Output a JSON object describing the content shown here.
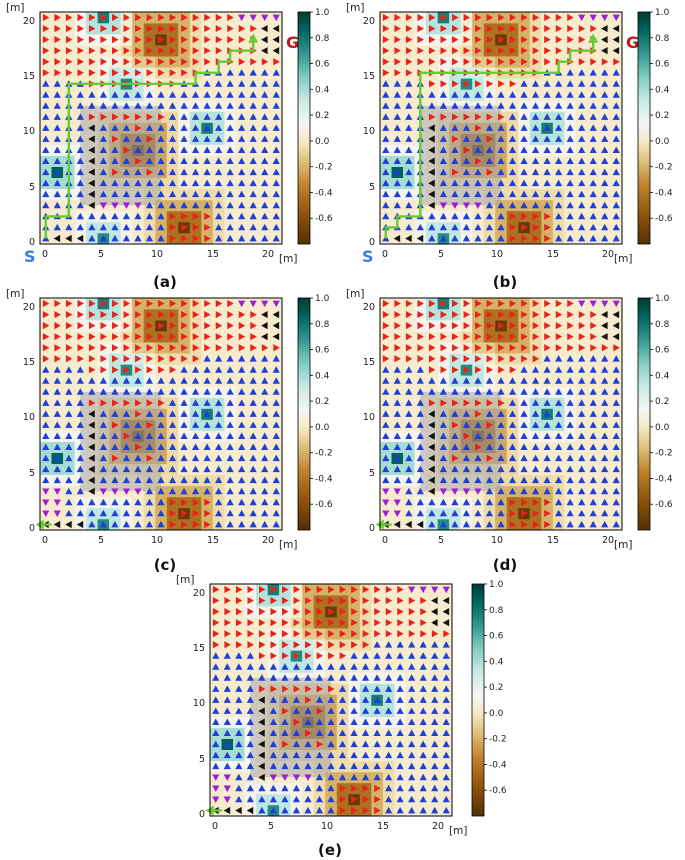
{
  "chart_data": [
    {
      "type": "heatmap",
      "panel_label": "(a)",
      "unit": "[m]",
      "x_ticks": [
        "0",
        "5",
        "10",
        "15",
        "20"
      ],
      "y_ticks": [
        "0",
        "5",
        "10",
        "15",
        "20"
      ],
      "colorbar_ticks": [
        "1.0",
        "0.8",
        "0.6",
        "0.4",
        "0.2",
        "0.0",
        "-0.2",
        "-0.4",
        "-0.6"
      ],
      "xlim": [
        -0.5,
        20.5
      ],
      "ylim": [
        -0.5,
        20.5
      ],
      "clim": [
        -0.8,
        1.0
      ],
      "start_label": "S",
      "goal_label": "G",
      "path": [
        [
          0,
          0
        ],
        [
          0,
          2
        ],
        [
          2,
          2
        ],
        [
          2,
          14
        ],
        [
          13,
          14
        ],
        [
          13,
          15
        ],
        [
          15,
          15
        ],
        [
          15,
          16
        ],
        [
          16,
          16
        ],
        [
          16,
          17
        ],
        [
          18,
          17
        ],
        [
          18,
          18
        ]
      ],
      "path_arrow_dir": "up"
    },
    {
      "type": "heatmap",
      "panel_label": "(b)",
      "unit": "[m]",
      "x_ticks": [
        "0",
        "5",
        "10",
        "15",
        "20"
      ],
      "y_ticks": [
        "0",
        "5",
        "10",
        "15",
        "20"
      ],
      "colorbar_ticks": [
        "1.0",
        "0.8",
        "0.6",
        "0.4",
        "0.2",
        "0.0",
        "-0.2",
        "-0.4",
        "-0.6"
      ],
      "xlim": [
        -0.5,
        20.5
      ],
      "ylim": [
        -0.5,
        20.5
      ],
      "clim": [
        -0.8,
        1.0
      ],
      "start_label": "S",
      "goal_label": "G",
      "path": [
        [
          0,
          0
        ],
        [
          0,
          1
        ],
        [
          1,
          1
        ],
        [
          1,
          2
        ],
        [
          3,
          2
        ],
        [
          3,
          15
        ],
        [
          15,
          15
        ],
        [
          15,
          16
        ],
        [
          16,
          16
        ],
        [
          16,
          17
        ],
        [
          18,
          17
        ],
        [
          18,
          18
        ]
      ],
      "path_arrow_dir": "up"
    },
    {
      "type": "heatmap",
      "panel_label": "(c)",
      "unit": "[m]",
      "x_ticks": [
        "0",
        "5",
        "10",
        "15",
        "20"
      ],
      "y_ticks": [
        "0",
        "5",
        "10",
        "15",
        "20"
      ],
      "colorbar_ticks": [
        "1.0",
        "0.8",
        "0.6",
        "0.4",
        "0.2",
        "0.0",
        "-0.2",
        "-0.4",
        "-0.6"
      ],
      "xlim": [
        -0.5,
        20.5
      ],
      "ylim": [
        -0.5,
        20.5
      ],
      "clim": [
        -0.8,
        1.0
      ],
      "start_label": "",
      "goal_label": "",
      "path": [],
      "path_arrow_dir": "left"
    },
    {
      "type": "heatmap",
      "panel_label": "(d)",
      "unit": "[m]",
      "x_ticks": [
        "0",
        "5",
        "10",
        "15",
        "20"
      ],
      "y_ticks": [
        "0",
        "5",
        "10",
        "15",
        "20"
      ],
      "colorbar_ticks": [
        "1.0",
        "0.8",
        "0.6",
        "0.4",
        "0.2",
        "0.0",
        "-0.2",
        "-0.4",
        "-0.6"
      ],
      "xlim": [
        -0.5,
        20.5
      ],
      "ylim": [
        -0.5,
        20.5
      ],
      "clim": [
        -0.8,
        1.0
      ],
      "start_label": "",
      "goal_label": "",
      "path": [],
      "path_arrow_dir": "left"
    },
    {
      "type": "heatmap",
      "panel_label": "(e)",
      "unit": "[m]",
      "x_ticks": [
        "0",
        "5",
        "10",
        "15",
        "20"
      ],
      "y_ticks": [
        "0",
        "5",
        "10",
        "15",
        "20"
      ],
      "colorbar_ticks": [
        "1.0",
        "0.8",
        "0.6",
        "0.4",
        "0.2",
        "0.0",
        "-0.2",
        "-0.4",
        "-0.6"
      ],
      "xlim": [
        -0.5,
        20.5
      ],
      "ylim": [
        -0.5,
        20.5
      ],
      "clim": [
        -0.8,
        1.0
      ],
      "start_label": "",
      "goal_label": "",
      "path": [],
      "path_arrow_dir": "left"
    }
  ],
  "colors": {
    "arrow_right": "#e8231c",
    "arrow_up": "#1f3fd6",
    "arrow_left": "#111111",
    "arrow_down": "#9b1fd6",
    "path": "#66cc33",
    "start": "#3a7be0",
    "goal": "#c0171a",
    "obstacle": "#a9a9a9"
  },
  "field": {
    "greens": [
      [
        1,
        6,
        0.85
      ],
      [
        5,
        20,
        0.75
      ],
      [
        7,
        14,
        0.7
      ],
      [
        14,
        10,
        0.75
      ],
      [
        5,
        0,
        0.7
      ]
    ],
    "browns": [
      [
        10,
        18,
        0.75
      ],
      [
        12,
        1,
        0.75
      ],
      [
        8,
        8,
        0.85
      ]
    ],
    "obstacle_rect": [
      4,
      3,
      10,
      11
    ]
  }
}
